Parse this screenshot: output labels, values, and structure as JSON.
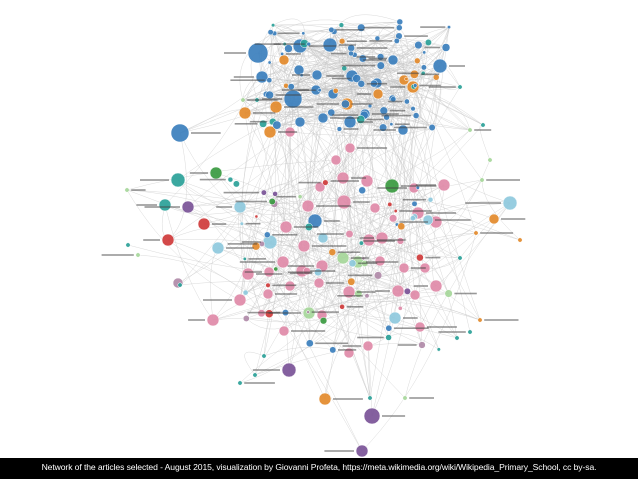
{
  "palette": {
    "blue": "#3b7fbd",
    "orange": "#e38a2b",
    "pink": "#e08aa8",
    "lightblue": "#8ec9dd",
    "teal": "#2aa198",
    "green": "#3a9a40",
    "lightgreen": "#a6d79a",
    "red": "#cf3a3a",
    "purple": "#7a5297",
    "mauve": "#b08aa8",
    "edge": "#c4c4c4",
    "label": "#444444"
  },
  "caption": "Network of the articles selected - August 2015, visualization by Giovanni Profeta, https://meta.wikimedia.org/wiki/Wikipedia_Primary_School, cc by-sa."
}
